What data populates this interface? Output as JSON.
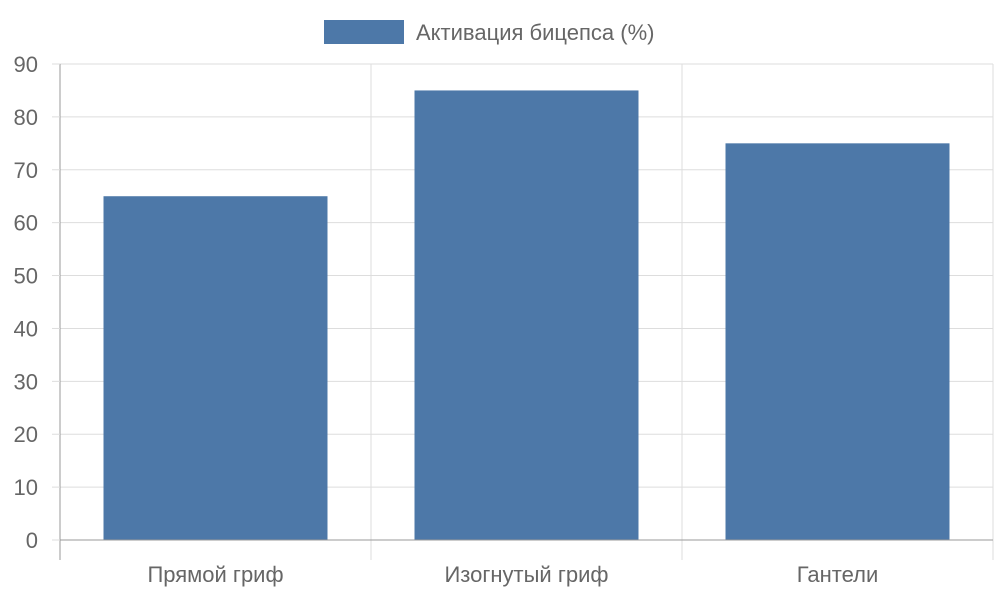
{
  "colors": {
    "bar_fill": "#4d78a8",
    "grid": "#dddddd",
    "axis": "#999999",
    "text": "#666666"
  },
  "chart_data": {
    "type": "bar",
    "categories": [
      "Прямой гриф",
      "Изогнутый гриф",
      "Гантели"
    ],
    "series": [
      {
        "name": "Активация бицепса (%)",
        "values": [
          65,
          85,
          75
        ]
      }
    ],
    "ylim": [
      0,
      90
    ],
    "yticks": [
      0,
      10,
      20,
      30,
      40,
      50,
      60,
      70,
      80,
      90
    ],
    "grid": true,
    "legend_position": "top-center"
  }
}
